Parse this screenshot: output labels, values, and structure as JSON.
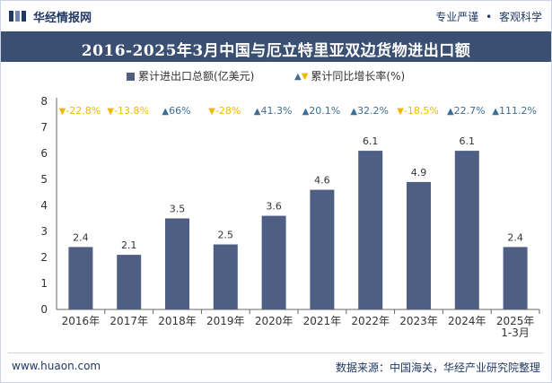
{
  "header": {
    "brand": "华经情报网",
    "tag1": "专业严谨",
    "tag_sep": "•",
    "tag2": "客观科学"
  },
  "legend": {
    "bar_label": "累计进出口总额(亿美元)",
    "growth_label": "累计同比增长率(%)"
  },
  "footer": {
    "website": "www.huaon.com",
    "source": "数据来源：中国海关，华经产业研究院整理"
  },
  "colors": {
    "bar": "#4e5f83",
    "up": "#3d6e94",
    "down": "#f2b705",
    "title_bg": "#3b4f73"
  },
  "chart_data": {
    "type": "bar",
    "title": "2016-2025年3月中国与厄立特里亚双边货物进出口额",
    "categories": [
      "2016年",
      "2017年",
      "2018年",
      "2019年",
      "2020年",
      "2021年",
      "2022年",
      "2023年",
      "2024年",
      "2025年\n1-3月"
    ],
    "series": [
      {
        "name": "累计进出口总额(亿美元)",
        "values": [
          2.4,
          2.1,
          3.5,
          2.5,
          3.6,
          4.6,
          6.1,
          4.9,
          6.1,
          2.4
        ]
      }
    ],
    "growth": {
      "name": "累计同比增长率(%)",
      "values": [
        "-22.8%",
        "-13.8%",
        "66%",
        "-28%",
        "41.3%",
        "20.1%",
        "32.2%",
        "-18.5%",
        "22.7%",
        "111.2%"
      ],
      "direction": [
        "down",
        "down",
        "up",
        "down",
        "up",
        "up",
        "up",
        "down",
        "up",
        "up"
      ]
    },
    "ylim": [
      0,
      8
    ],
    "yticks": [
      0,
      1,
      2,
      3,
      4,
      5,
      6,
      7,
      8
    ],
    "xlabel": "",
    "ylabel": ""
  }
}
